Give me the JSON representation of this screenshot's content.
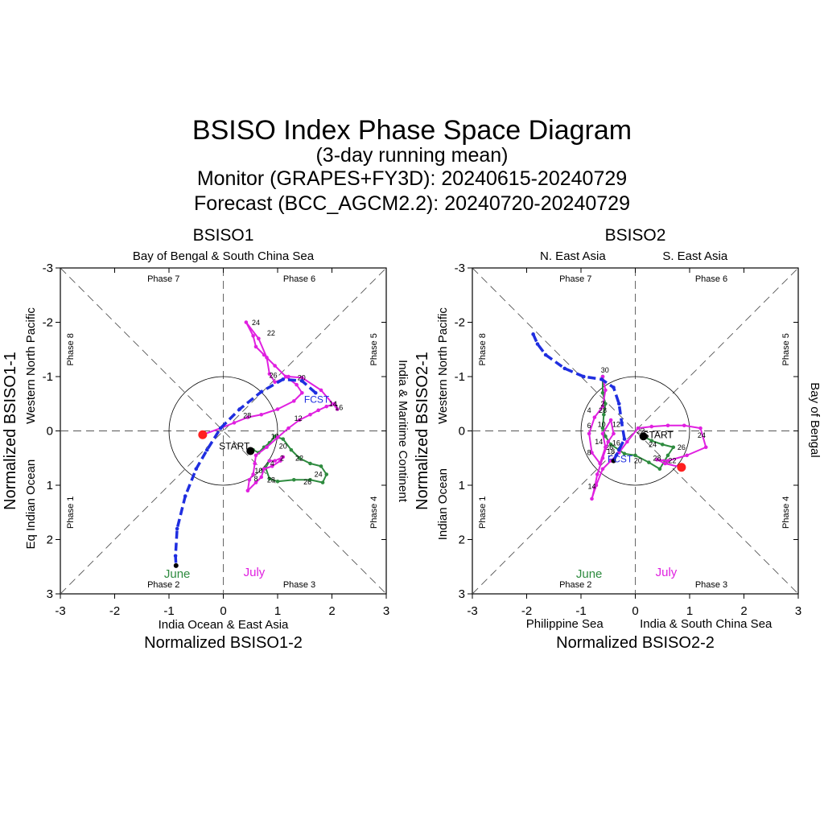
{
  "titles": {
    "main": "BSISO Index Phase Space Diagram",
    "sub": "(3-day running mean)",
    "monitor": "Monitor (GRAPES+FY3D): 20240615-20240729",
    "forecast": "Forecast (BCC_AGCM2.2): 20240720-20240729"
  },
  "colors": {
    "june": "#2e8b3f",
    "july": "#e020e0",
    "forecast": "#1f2ee0",
    "end_marker": "#ff2020"
  },
  "month_labels": {
    "june": "June",
    "july": "July"
  },
  "markers": {
    "start": "START",
    "forecast": "FCST"
  },
  "chart_data": [
    {
      "type": "scatter",
      "title": "BSISO1",
      "xlabel": "Normalized BSISO1-2",
      "ylabel": "Normalized BSISO1-1",
      "xlim": [
        -3,
        3
      ],
      "ylim": [
        3,
        -3
      ],
      "ticks": [
        "-3",
        "-2",
        "-1",
        "0",
        "1",
        "2",
        "3"
      ],
      "regions": {
        "top": "Bay of Bengal & South China Sea",
        "bottom": "India Ocean & East Asia",
        "left_outer": "Eq Indian Ocean",
        "left_inner": "Western North Pacific",
        "right": "India & Maritime Continent"
      },
      "phases": {
        "top_left": "Phase 7",
        "top_right": "Phase 6",
        "left_upper": "Phase 8",
        "left_lower": "Phase 1",
        "right_upper": "Phase 5",
        "right_lower": "Phase 4",
        "bottom_left": "Phase 2",
        "bottom_right": "Phase 3"
      },
      "series": [
        {
          "name": "June",
          "points": [
            [
              0.55,
              0.35
            ],
            [
              0.65,
              0.4
            ],
            [
              0.75,
              0.3
            ],
            [
              0.85,
              0.22
            ],
            [
              0.95,
              0.1
            ],
            [
              1.1,
              0.15
            ],
            [
              1.25,
              0.35
            ],
            [
              1.4,
              0.5
            ],
            [
              1.6,
              0.6
            ],
            [
              1.8,
              0.65
            ],
            [
              1.9,
              0.8
            ],
            [
              1.83,
              0.95
            ],
            [
              1.6,
              0.9
            ],
            [
              1.3,
              0.9
            ],
            [
              1.0,
              0.93
            ],
            [
              0.85,
              0.88
            ],
            [
              0.78,
              0.68
            ],
            [
              0.85,
              0.55
            ]
          ],
          "labels": [
            [
              "18",
              [
                0.95,
                0.1
              ]
            ],
            [
              "20",
              [
                1.1,
                0.28
              ]
            ],
            [
              "22",
              [
                1.4,
                0.5
              ]
            ],
            [
              "24",
              [
                1.75,
                0.8
              ]
            ],
            [
              "26",
              [
                1.55,
                0.94
              ]
            ],
            [
              "28",
              [
                0.88,
                0.9
              ]
            ]
          ]
        },
        {
          "name": "July",
          "points": [
            [
              0.85,
              0.55
            ],
            [
              0.95,
              0.55
            ],
            [
              1.1,
              0.48
            ],
            [
              1.05,
              0.55
            ],
            [
              0.9,
              0.65
            ],
            [
              0.75,
              0.7
            ],
            [
              0.7,
              0.85
            ],
            [
              0.6,
              0.95
            ],
            [
              0.45,
              1.1
            ],
            [
              0.48,
              0.9
            ],
            [
              0.55,
              0.8
            ],
            [
              0.58,
              0.6
            ],
            [
              0.6,
              0.45
            ],
            [
              0.8,
              0.3
            ],
            [
              1.0,
              0.12
            ],
            [
              1.2,
              -0.05
            ],
            [
              1.4,
              -0.2
            ],
            [
              1.6,
              -0.3
            ],
            [
              1.75,
              -0.38
            ],
            [
              1.9,
              -0.45
            ],
            [
              2.05,
              -0.5
            ],
            [
              2.1,
              -0.4
            ],
            [
              1.8,
              -0.75
            ],
            [
              1.45,
              -0.98
            ],
            [
              1.2,
              -1.0
            ],
            [
              0.95,
              -0.9
            ],
            [
              0.85,
              -1.05
            ],
            [
              0.8,
              -1.35
            ],
            [
              0.65,
              -1.7
            ],
            [
              0.42,
              -2.0
            ],
            [
              0.55,
              -1.75
            ],
            [
              0.6,
              -1.55
            ],
            [
              0.75,
              -1.4
            ],
            [
              0.95,
              -1.2
            ],
            [
              1.15,
              -1.0
            ],
            [
              1.35,
              -0.85
            ],
            [
              1.45,
              -0.7
            ],
            [
              1.3,
              -0.55
            ],
            [
              1.0,
              -0.4
            ],
            [
              0.7,
              -0.3
            ],
            [
              0.45,
              -0.25
            ],
            [
              0.2,
              -0.15
            ],
            [
              -0.05,
              -0.05
            ],
            [
              -0.38,
              0.07
            ]
          ],
          "labels": [
            [
              "2",
              [
                1.08,
                0.5
              ]
            ],
            [
              "4",
              [
                0.9,
                0.6
              ]
            ],
            [
              "8",
              [
                0.6,
                0.88
              ]
            ],
            [
              "10",
              [
                0.65,
                0.73
              ]
            ],
            [
              "12",
              [
                1.38,
                -0.23
              ]
            ],
            [
              "14",
              [
                2.02,
                -0.5
              ]
            ],
            [
              "16",
              [
                2.13,
                -0.43
              ]
            ],
            [
              "20",
              [
                1.44,
                -0.98
              ]
            ],
            [
              "22",
              [
                0.88,
                -1.8
              ]
            ],
            [
              "24",
              [
                0.6,
                -1.99
              ]
            ],
            [
              "26",
              [
                0.92,
                -1.02
              ]
            ],
            [
              "28",
              [
                0.44,
                -0.28
              ]
            ]
          ]
        },
        {
          "name": "FCST",
          "points": [
            [
              1.7,
              -0.7
            ],
            [
              1.45,
              -0.92
            ],
            [
              1.1,
              -0.95
            ],
            [
              0.7,
              -0.72
            ],
            [
              0.3,
              -0.4
            ],
            [
              -0.05,
              -0.05
            ],
            [
              -0.3,
              0.35
            ],
            [
              -0.5,
              0.7
            ],
            [
              -0.7,
              1.2
            ],
            [
              -0.85,
              1.8
            ],
            [
              -0.88,
              2.3
            ],
            [
              -0.87,
              2.48
            ]
          ]
        }
      ],
      "start": [
        0.5,
        0.37
      ],
      "end": [
        -0.38,
        0.07
      ],
      "forecast_label_at": [
        1.72,
        -0.58
      ]
    },
    {
      "type": "scatter",
      "title": "BSISO2",
      "xlabel": "Normalized BSISO2-2",
      "ylabel": "Normalized BSISO2-1",
      "xlim": [
        -3,
        3
      ],
      "ylim": [
        3,
        -3
      ],
      "ticks": [
        "-3",
        "-2",
        "-1",
        "0",
        "1",
        "2",
        "3"
      ],
      "regions": {
        "top_left": "N. East Asia",
        "top_right": "S. East Asia",
        "bottom_left": "Philippine Sea",
        "bottom_right": "India & South China Sea",
        "left_outer": "Indian Ocean",
        "left_inner": "Western North Pacific",
        "right": "Bay of Bengal"
      },
      "phases": {
        "top_left": "Phase 7",
        "top_right": "Phase 6",
        "left_upper": "Phase 8",
        "left_lower": "Phase 1",
        "right_upper": "Phase 5",
        "right_lower": "Phase 4",
        "bottom_left": "Phase 2",
        "bottom_right": "Phase 3"
      },
      "series": [
        {
          "name": "June",
          "points": [
            [
              0.15,
              0.1
            ],
            [
              0.3,
              0.18
            ],
            [
              0.5,
              0.25
            ],
            [
              0.7,
              0.3
            ],
            [
              0.6,
              0.45
            ],
            [
              0.45,
              0.7
            ],
            [
              0.25,
              0.58
            ],
            [
              0.0,
              0.45
            ],
            [
              -0.2,
              0.42
            ],
            [
              -0.3,
              0.35
            ],
            [
              -0.45,
              0.25
            ],
            [
              -0.55,
              0.1
            ],
            [
              -0.6,
              -0.05
            ],
            [
              -0.58,
              -0.3
            ],
            [
              -0.55,
              -0.5
            ],
            [
              -0.6,
              -0.7
            ],
            [
              -0.6,
              -1.0
            ]
          ],
          "labels": [
            [
              "22",
              [
                0.1,
                0.0
              ]
            ],
            [
              "24",
              [
                0.32,
                0.25
              ]
            ],
            [
              "26",
              [
                -0.48,
                0.3
              ]
            ],
            [
              "20",
              [
                0.05,
                0.55
              ]
            ],
            [
              "16",
              [
                -0.35,
                0.22
              ]
            ]
          ]
        },
        {
          "name": "July",
          "points": [
            [
              -0.6,
              -1.0
            ],
            [
              -0.55,
              -0.75
            ],
            [
              -0.6,
              -0.45
            ],
            [
              -0.75,
              -0.25
            ],
            [
              -0.85,
              0.05
            ],
            [
              -0.8,
              0.4
            ],
            [
              -0.65,
              0.6
            ],
            [
              -0.55,
              0.3
            ],
            [
              -0.6,
              0.05
            ],
            [
              -0.45,
              -0.2
            ],
            [
              -0.4,
              0.05
            ],
            [
              -0.5,
              0.2
            ],
            [
              -0.6,
              0.5
            ],
            [
              -0.7,
              0.8
            ],
            [
              -0.75,
              1.05
            ],
            [
              -0.8,
              1.25
            ],
            [
              -0.72,
              1.0
            ],
            [
              -0.6,
              0.7
            ],
            [
              -0.45,
              0.55
            ],
            [
              -0.3,
              0.4
            ],
            [
              -0.15,
              0.2
            ],
            [
              0.05,
              -0.05
            ],
            [
              0.3,
              -0.08
            ],
            [
              0.6,
              -0.1
            ],
            [
              0.9,
              -0.1
            ],
            [
              1.2,
              -0.05
            ],
            [
              1.3,
              0.3
            ],
            [
              0.95,
              0.45
            ],
            [
              0.6,
              0.55
            ],
            [
              0.4,
              0.53
            ],
            [
              0.55,
              0.6
            ],
            [
              0.85,
              0.67
            ]
          ],
          "labels": [
            [
              "30",
              [
                -0.56,
                -1.12
              ]
            ],
            [
              "2",
              [
                -0.6,
                -0.5
              ]
            ],
            [
              "28",
              [
                -0.6,
                -0.38
              ]
            ],
            [
              "4",
              [
                -0.85,
                -0.38
              ]
            ],
            [
              "6",
              [
                -0.85,
                -0.1
              ]
            ],
            [
              "8",
              [
                -0.85,
                0.4
              ]
            ],
            [
              "10",
              [
                -0.62,
                -0.12
              ]
            ],
            [
              "12",
              [
                -0.35,
                -0.12
              ]
            ],
            [
              "14",
              [
                -0.67,
                0.2
              ]
            ],
            [
              "18",
              [
                -0.45,
                0.38
              ]
            ],
            [
              "14",
              [
                -0.8,
                1.02
              ]
            ],
            [
              "24",
              [
                1.22,
                0.08
              ]
            ],
            [
              "26",
              [
                0.85,
                0.3
              ]
            ],
            [
              "28",
              [
                0.4,
                0.5
              ]
            ],
            [
              "22",
              [
                0.68,
                0.55
              ]
            ]
          ]
        },
        {
          "name": "FCST",
          "points": [
            [
              -1.88,
              -1.78
            ],
            [
              -1.8,
              -1.6
            ],
            [
              -1.65,
              -1.4
            ],
            [
              -1.3,
              -1.15
            ],
            [
              -0.95,
              -1.0
            ],
            [
              -0.62,
              -0.95
            ],
            [
              -0.4,
              -0.8
            ],
            [
              -0.3,
              -0.5
            ],
            [
              -0.25,
              -0.15
            ],
            [
              -0.2,
              0.15
            ],
            [
              -0.3,
              0.35
            ],
            [
              -0.35,
              0.45
            ],
            [
              -0.4,
              0.55
            ]
          ]
        }
      ],
      "start": [
        0.15,
        0.1
      ],
      "end": [
        0.85,
        0.67
      ],
      "forecast_label_at": [
        -0.28,
        0.52
      ]
    }
  ]
}
